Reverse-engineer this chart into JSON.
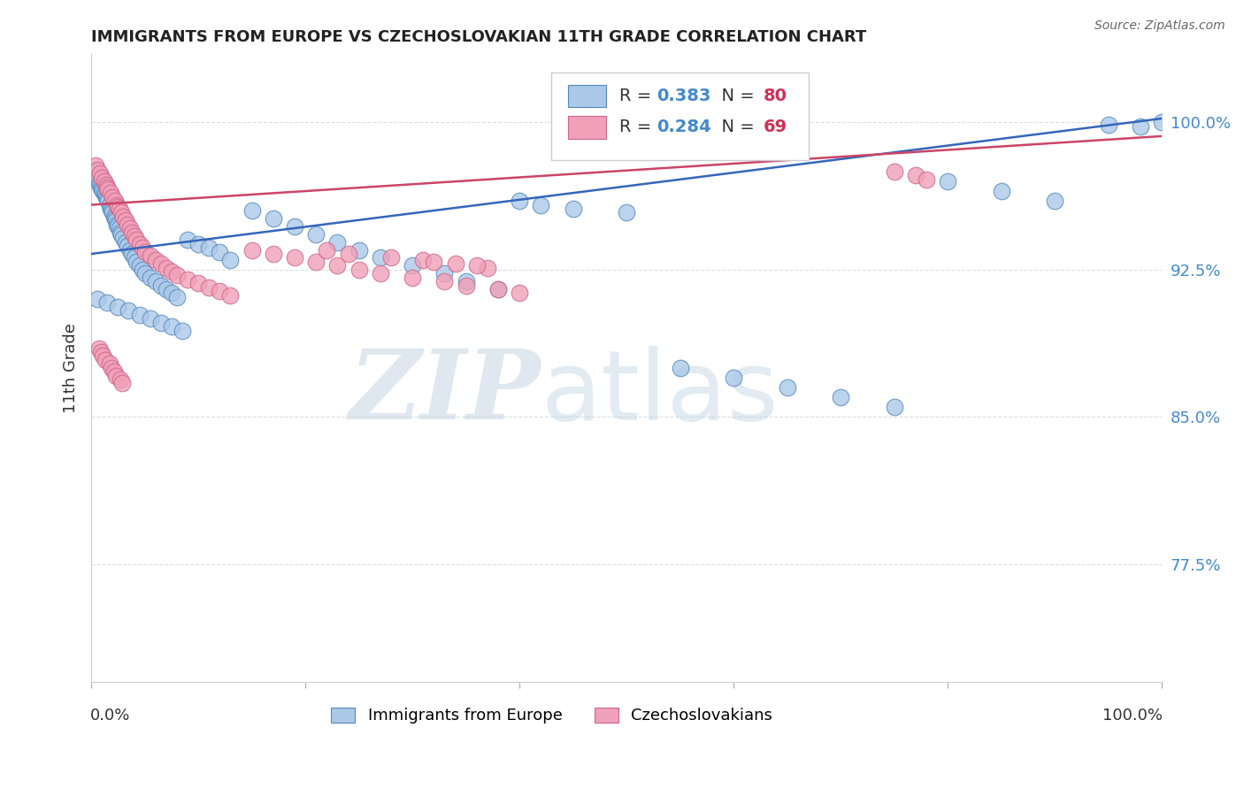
{
  "title": "IMMIGRANTS FROM EUROPE VS CZECHOSLOVAKIAN 11TH GRADE CORRELATION CHART",
  "source": "Source: ZipAtlas.com",
  "ylabel": "11th Grade",
  "ytick_labels": [
    "77.5%",
    "85.0%",
    "92.5%",
    "100.0%"
  ],
  "ytick_values": [
    0.775,
    0.85,
    0.925,
    1.0
  ],
  "xlim": [
    0.0,
    1.0
  ],
  "ylim": [
    0.715,
    1.035
  ],
  "legend1_label": "Immigrants from Europe",
  "legend2_label": "Czechoslovakians",
  "R_blue": "0.383",
  "N_blue": "80",
  "R_pink": "0.284",
  "N_pink": "69",
  "blue_fill": "#aac8e8",
  "blue_edge": "#5588bb",
  "pink_fill": "#f0a0b8",
  "pink_edge": "#cc6688",
  "line_blue": "#3366bb",
  "line_pink": "#cc4466",
  "watermark_zip_color": "#c0cce0",
  "watermark_atlas_color": "#b0c8e0",
  "grid_color": "#dddddd",
  "background_color": "#ffffff",
  "title_color": "#222222",
  "ytick_color": "#4488cc",
  "source_color": "#666666",
  "blue_line_start_y": 0.933,
  "blue_line_end_y": 1.002,
  "pink_line_start_y": 0.958,
  "pink_line_end_y": 0.993,
  "blue_x": [
    0.003,
    0.005,
    0.007,
    0.008,
    0.009,
    0.01,
    0.011,
    0.012,
    0.013,
    0.014,
    0.015,
    0.016,
    0.017,
    0.018,
    0.019,
    0.02,
    0.021,
    0.022,
    0.023,
    0.024,
    0.025,
    0.026,
    0.027,
    0.028,
    0.03,
    0.032,
    0.034,
    0.036,
    0.038,
    0.04,
    0.042,
    0.045,
    0.048,
    0.05,
    0.055,
    0.06,
    0.065,
    0.07,
    0.075,
    0.08,
    0.09,
    0.1,
    0.11,
    0.12,
    0.13,
    0.15,
    0.17,
    0.19,
    0.21,
    0.23,
    0.25,
    0.27,
    0.3,
    0.33,
    0.35,
    0.38,
    0.4,
    0.42,
    0.45,
    0.5,
    0.55,
    0.6,
    0.65,
    0.7,
    0.75,
    0.8,
    0.85,
    0.9,
    0.95,
    0.98,
    0.006,
    0.015,
    0.025,
    0.035,
    0.045,
    0.055,
    0.065,
    0.075,
    0.085,
    1.0
  ],
  "blue_y": [
    0.975,
    0.972,
    0.969,
    0.968,
    0.967,
    0.966,
    0.965,
    0.964,
    0.963,
    0.962,
    0.961,
    0.96,
    0.958,
    0.956,
    0.955,
    0.954,
    0.952,
    0.951,
    0.95,
    0.948,
    0.947,
    0.946,
    0.944,
    0.943,
    0.941,
    0.939,
    0.937,
    0.935,
    0.933,
    0.931,
    0.929,
    0.927,
    0.925,
    0.923,
    0.921,
    0.919,
    0.917,
    0.915,
    0.913,
    0.911,
    0.94,
    0.938,
    0.936,
    0.934,
    0.93,
    0.955,
    0.951,
    0.947,
    0.943,
    0.939,
    0.935,
    0.931,
    0.927,
    0.923,
    0.919,
    0.915,
    0.96,
    0.958,
    0.956,
    0.954,
    0.875,
    0.87,
    0.865,
    0.86,
    0.855,
    0.97,
    0.965,
    0.96,
    0.999,
    0.998,
    0.91,
    0.908,
    0.906,
    0.904,
    0.902,
    0.9,
    0.898,
    0.896,
    0.894,
    1.0
  ],
  "pink_x": [
    0.004,
    0.006,
    0.008,
    0.01,
    0.012,
    0.014,
    0.015,
    0.016,
    0.018,
    0.02,
    0.022,
    0.024,
    0.025,
    0.026,
    0.028,
    0.03,
    0.032,
    0.034,
    0.036,
    0.038,
    0.04,
    0.042,
    0.045,
    0.048,
    0.05,
    0.055,
    0.06,
    0.065,
    0.07,
    0.075,
    0.08,
    0.09,
    0.1,
    0.11,
    0.12,
    0.13,
    0.15,
    0.17,
    0.19,
    0.21,
    0.23,
    0.25,
    0.27,
    0.3,
    0.33,
    0.35,
    0.38,
    0.4,
    0.007,
    0.009,
    0.011,
    0.013,
    0.017,
    0.019,
    0.021,
    0.023,
    0.027,
    0.029,
    0.31,
    0.34,
    0.37,
    0.75,
    0.77,
    0.78,
    0.22,
    0.24,
    0.28,
    0.32,
    0.36
  ],
  "pink_y": [
    0.978,
    0.976,
    0.974,
    0.972,
    0.97,
    0.968,
    0.967,
    0.966,
    0.964,
    0.962,
    0.96,
    0.958,
    0.957,
    0.956,
    0.954,
    0.952,
    0.95,
    0.948,
    0.946,
    0.944,
    0.942,
    0.94,
    0.938,
    0.936,
    0.934,
    0.932,
    0.93,
    0.928,
    0.926,
    0.924,
    0.922,
    0.92,
    0.918,
    0.916,
    0.914,
    0.912,
    0.935,
    0.933,
    0.931,
    0.929,
    0.927,
    0.925,
    0.923,
    0.921,
    0.919,
    0.917,
    0.915,
    0.913,
    0.885,
    0.883,
    0.881,
    0.879,
    0.877,
    0.875,
    0.873,
    0.871,
    0.869,
    0.867,
    0.93,
    0.928,
    0.926,
    0.975,
    0.973,
    0.971,
    0.935,
    0.933,
    0.931,
    0.929,
    0.927
  ]
}
